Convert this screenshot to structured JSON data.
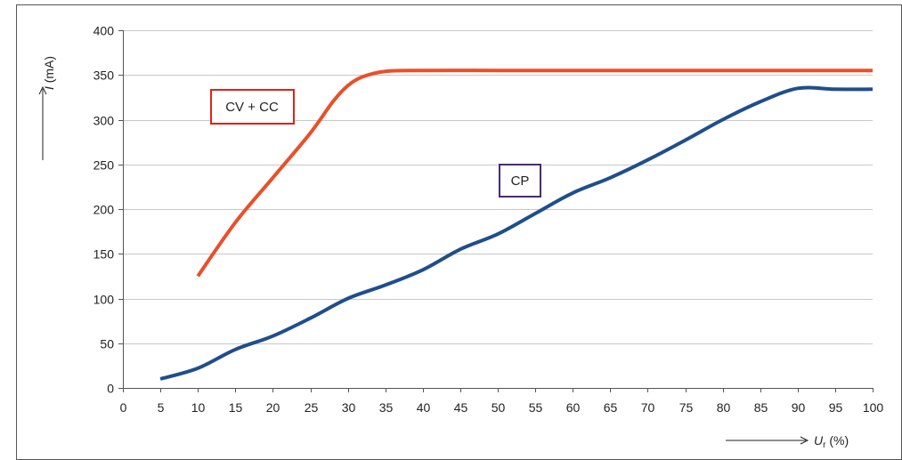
{
  "chart_data": {
    "type": "line",
    "xlabel": {
      "symbol": "U",
      "subscript": "r",
      "unit": "(%)"
    },
    "ylabel": {
      "symbol": "I",
      "unit": "(mA)"
    },
    "xlim": [
      0,
      100
    ],
    "ylim": [
      0,
      400
    ],
    "x_ticks": [
      "0",
      "5",
      "10",
      "15",
      "20",
      "25",
      "30",
      "35",
      "40",
      "45",
      "50",
      "55",
      "60",
      "65",
      "70",
      "75",
      "80",
      "85",
      "90",
      "95",
      "100"
    ],
    "y_ticks": [
      "0",
      "50",
      "100",
      "150",
      "200",
      "250",
      "300",
      "350",
      "400"
    ],
    "grid": "horizontal",
    "series": [
      {
        "name": "CV + CC",
        "color": "#e8502a",
        "x": [
          10,
          15,
          20,
          25,
          28,
          30,
          32,
          35,
          40,
          50,
          60,
          70,
          80,
          90,
          100
        ],
        "y": [
          125,
          185,
          235,
          285,
          320,
          338,
          348,
          354,
          355,
          355,
          355,
          355,
          355,
          355,
          355
        ]
      },
      {
        "name": "CP",
        "color": "#1f4e8c",
        "x": [
          5,
          10,
          15,
          20,
          25,
          30,
          35,
          40,
          45,
          50,
          55,
          60,
          65,
          70,
          75,
          80,
          85,
          90,
          95,
          100
        ],
        "y": [
          10,
          22,
          43,
          58,
          78,
          100,
          115,
          132,
          155,
          172,
          195,
          218,
          235,
          255,
          277,
          300,
          320,
          335,
          334,
          334
        ]
      }
    ],
    "annotations": [
      {
        "text": "CV + CC",
        "border_color": "#d9261c"
      },
      {
        "text": "CP",
        "border_color": "#4a2a7a"
      }
    ]
  }
}
